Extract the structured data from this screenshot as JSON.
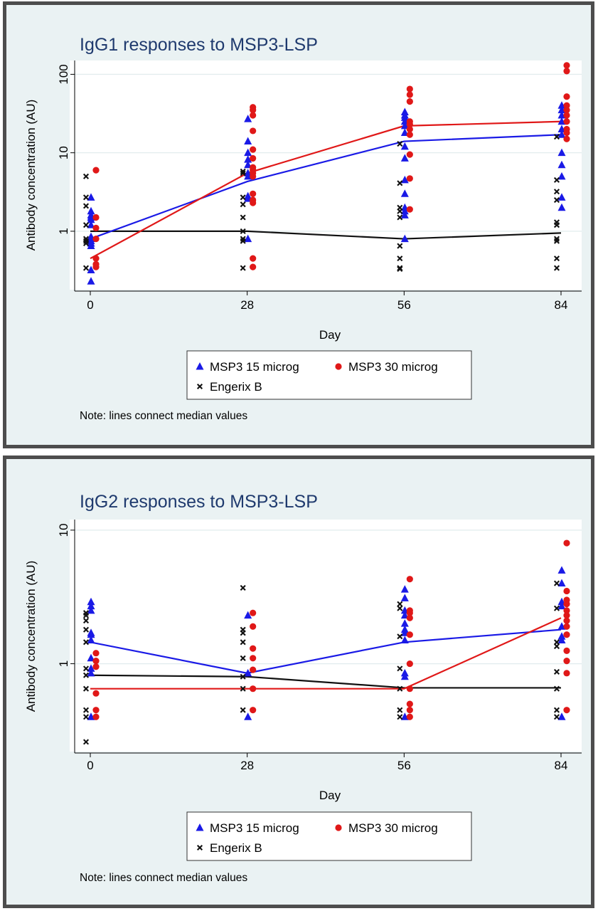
{
  "chart_data": [
    {
      "type": "scatter",
      "title": "IgG1 responses to MSP3-LSP",
      "xlabel": "Day",
      "ylabel": "Antibody concentration (AU)",
      "y_scale": "log",
      "ylim": [
        0.18,
        150
      ],
      "x_ticks": [
        0,
        28,
        56,
        84
      ],
      "y_ticks": [
        1,
        10,
        100
      ],
      "grid": true,
      "legend_position": "bottom",
      "note": "Note: lines connect median values",
      "series": [
        {
          "name": "MSP3 15 microg",
          "marker": "triangle",
          "color": "#1a1ae6",
          "points": [
            [
              0,
              2.7
            ],
            [
              0,
              1.8
            ],
            [
              0,
              1.6
            ],
            [
              0,
              1.5
            ],
            [
              0,
              1.4
            ],
            [
              0,
              1.2
            ],
            [
              0,
              0.85
            ],
            [
              0,
              0.8
            ],
            [
              0,
              0.75
            ],
            [
              0,
              0.7
            ],
            [
              0,
              0.65
            ],
            [
              0,
              0.32
            ],
            [
              0,
              0.23
            ],
            [
              28,
              27
            ],
            [
              28,
              14
            ],
            [
              28,
              10
            ],
            [
              28,
              8.2
            ],
            [
              28,
              7
            ],
            [
              28,
              5.5
            ],
            [
              28,
              5
            ],
            [
              28,
              2.8
            ],
            [
              28,
              2.6
            ],
            [
              28,
              0.8
            ],
            [
              56,
              33
            ],
            [
              56,
              30
            ],
            [
              56,
              28
            ],
            [
              56,
              25
            ],
            [
              56,
              22
            ],
            [
              56,
              18
            ],
            [
              56,
              12
            ],
            [
              56,
              8.5
            ],
            [
              56,
              4.5
            ],
            [
              56,
              3
            ],
            [
              56,
              2
            ],
            [
              56,
              1.8
            ],
            [
              56,
              1.6
            ],
            [
              56,
              0.8
            ],
            [
              84,
              40
            ],
            [
              84,
              35
            ],
            [
              84,
              30
            ],
            [
              84,
              25
            ],
            [
              84,
              20
            ],
            [
              84,
              17
            ],
            [
              84,
              10
            ],
            [
              84,
              7
            ],
            [
              84,
              5
            ],
            [
              84,
              2.7
            ],
            [
              84,
              2
            ]
          ],
          "medians": [
            [
              0,
              0.8
            ],
            [
              28,
              4.3
            ],
            [
              56,
              14
            ],
            [
              84,
              17
            ]
          ]
        },
        {
          "name": "MSP3 30 microg",
          "marker": "circle",
          "color": "#e01818",
          "points": [
            [
              0,
              6
            ],
            [
              0,
              1.5
            ],
            [
              0,
              1.1
            ],
            [
              0,
              0.8
            ],
            [
              0,
              0.45
            ],
            [
              0,
              0.38
            ],
            [
              0,
              0.35
            ],
            [
              28,
              38
            ],
            [
              28,
              35
            ],
            [
              28,
              30
            ],
            [
              28,
              19
            ],
            [
              28,
              11
            ],
            [
              28,
              8.5
            ],
            [
              28,
              6.5
            ],
            [
              28,
              6
            ],
            [
              28,
              5.5
            ],
            [
              28,
              5
            ],
            [
              28,
              3
            ],
            [
              28,
              2.5
            ],
            [
              28,
              2.3
            ],
            [
              28,
              0.45
            ],
            [
              28,
              0.35
            ],
            [
              56,
              65
            ],
            [
              56,
              55
            ],
            [
              56,
              45
            ],
            [
              56,
              25
            ],
            [
              56,
              23
            ],
            [
              56,
              20
            ],
            [
              56,
              17
            ],
            [
              56,
              9.5
            ],
            [
              56,
              4.7
            ],
            [
              56,
              1.9
            ],
            [
              84,
              130
            ],
            [
              84,
              110
            ],
            [
              84,
              52
            ],
            [
              84,
              40
            ],
            [
              84,
              35
            ],
            [
              84,
              30
            ],
            [
              84,
              25
            ],
            [
              84,
              20
            ],
            [
              84,
              18
            ],
            [
              84,
              15
            ]
          ],
          "medians": [
            [
              0,
              0.45
            ],
            [
              28,
              5.5
            ],
            [
              56,
              22
            ],
            [
              84,
              25
            ]
          ]
        },
        {
          "name": "Engerix B",
          "marker": "x",
          "color": "#111111",
          "points": [
            [
              0,
              5
            ],
            [
              0,
              2.7
            ],
            [
              0,
              2.1
            ],
            [
              0,
              1.2
            ],
            [
              0,
              0.8
            ],
            [
              0,
              0.75
            ],
            [
              0,
              0.7
            ],
            [
              0,
              0.34
            ],
            [
              28,
              5.8
            ],
            [
              28,
              5.5
            ],
            [
              28,
              2.7
            ],
            [
              28,
              2.2
            ],
            [
              28,
              1.5
            ],
            [
              28,
              1
            ],
            [
              28,
              0.8
            ],
            [
              28,
              0.75
            ],
            [
              28,
              0.34
            ],
            [
              56,
              13
            ],
            [
              56,
              4.1
            ],
            [
              56,
              2
            ],
            [
              56,
              1.8
            ],
            [
              56,
              1.5
            ],
            [
              56,
              0.65
            ],
            [
              56,
              0.45
            ],
            [
              56,
              0.34
            ],
            [
              56,
              0.33
            ],
            [
              84,
              16
            ],
            [
              84,
              4.5
            ],
            [
              84,
              3.2
            ],
            [
              84,
              2.5
            ],
            [
              84,
              1.3
            ],
            [
              84,
              1.2
            ],
            [
              84,
              0.8
            ],
            [
              84,
              0.75
            ],
            [
              84,
              0.45
            ],
            [
              84,
              0.34
            ]
          ],
          "medians": [
            [
              0,
              1
            ],
            [
              28,
              1
            ],
            [
              56,
              0.8
            ],
            [
              84,
              0.95
            ]
          ]
        }
      ]
    },
    {
      "type": "scatter",
      "title": "IgG2 responses to MSP3-LSP",
      "xlabel": "Day",
      "ylabel": "Antibody concentration (AU)",
      "y_scale": "log",
      "ylim": [
        0.22,
        12
      ],
      "x_ticks": [
        0,
        28,
        56,
        84
      ],
      "y_ticks": [
        1,
        10
      ],
      "grid": true,
      "legend_position": "bottom",
      "note": "Note: lines connect median values",
      "series": [
        {
          "name": "MSP3 15 microg",
          "marker": "triangle",
          "color": "#1a1ae6",
          "points": [
            [
              0,
              2.9
            ],
            [
              0,
              2.7
            ],
            [
              0,
              2.5
            ],
            [
              0,
              1.7
            ],
            [
              0,
              1.65
            ],
            [
              0,
              1.5
            ],
            [
              0,
              1.1
            ],
            [
              0,
              0.92
            ],
            [
              0,
              0.85
            ],
            [
              0,
              0.4
            ],
            [
              28,
              2.3
            ],
            [
              28,
              0.85
            ],
            [
              28,
              0.4
            ],
            [
              56,
              3.6
            ],
            [
              56,
              3.1
            ],
            [
              56,
              2.5
            ],
            [
              56,
              2.3
            ],
            [
              56,
              2
            ],
            [
              56,
              1.8
            ],
            [
              56,
              1.7
            ],
            [
              56,
              1.5
            ],
            [
              56,
              0.85
            ],
            [
              56,
              0.8
            ],
            [
              56,
              0.4
            ],
            [
              84,
              5
            ],
            [
              84,
              4
            ],
            [
              84,
              2.9
            ],
            [
              84,
              2.7
            ],
            [
              84,
              1.9
            ],
            [
              84,
              1.6
            ],
            [
              84,
              1.5
            ],
            [
              84,
              0.4
            ]
          ],
          "medians": [
            [
              0,
              1.45
            ],
            [
              28,
              0.85
            ],
            [
              56,
              1.45
            ],
            [
              84,
              1.8
            ]
          ]
        },
        {
          "name": "MSP3 30 microg",
          "marker": "circle",
          "color": "#e01818",
          "points": [
            [
              0,
              1.2
            ],
            [
              0,
              1.05
            ],
            [
              0,
              0.95
            ],
            [
              0,
              0.6
            ],
            [
              0,
              0.45
            ],
            [
              0,
              0.4
            ],
            [
              28,
              2.4
            ],
            [
              28,
              1.9
            ],
            [
              28,
              1.3
            ],
            [
              28,
              1.1
            ],
            [
              28,
              0.9
            ],
            [
              28,
              0.65
            ],
            [
              28,
              0.45
            ],
            [
              56,
              4.3
            ],
            [
              56,
              2.5
            ],
            [
              56,
              2.4
            ],
            [
              56,
              2.2
            ],
            [
              56,
              1.65
            ],
            [
              56,
              1
            ],
            [
              56,
              0.65
            ],
            [
              56,
              0.5
            ],
            [
              56,
              0.45
            ],
            [
              56,
              0.4
            ],
            [
              84,
              8
            ],
            [
              84,
              3.5
            ],
            [
              84,
              3
            ],
            [
              84,
              2.8
            ],
            [
              84,
              2.5
            ],
            [
              84,
              2.3
            ],
            [
              84,
              2.1
            ],
            [
              84,
              1.9
            ],
            [
              84,
              1.65
            ],
            [
              84,
              1.25
            ],
            [
              84,
              1.05
            ],
            [
              84,
              0.85
            ],
            [
              84,
              0.45
            ]
          ],
          "medians": [
            [
              0,
              0.65
            ],
            [
              28,
              0.65
            ],
            [
              56,
              0.65
            ],
            [
              84,
              2.2
            ]
          ]
        },
        {
          "name": "Engerix B",
          "marker": "x",
          "color": "#111111",
          "points": [
            [
              0,
              2.4
            ],
            [
              0,
              2.3
            ],
            [
              0,
              2.1
            ],
            [
              0,
              1.8
            ],
            [
              0,
              1.45
            ],
            [
              0,
              0.92
            ],
            [
              0,
              0.82
            ],
            [
              0,
              0.65
            ],
            [
              0,
              0.45
            ],
            [
              0,
              0.4
            ],
            [
              0,
              0.26
            ],
            [
              28,
              3.7
            ],
            [
              28,
              1.8
            ],
            [
              28,
              1.7
            ],
            [
              28,
              1.45
            ],
            [
              28,
              1.1
            ],
            [
              28,
              0.8
            ],
            [
              28,
              0.65
            ],
            [
              28,
              0.45
            ],
            [
              56,
              2.8
            ],
            [
              56,
              2.6
            ],
            [
              56,
              1.6
            ],
            [
              56,
              0.92
            ],
            [
              56,
              0.65
            ],
            [
              56,
              0.45
            ],
            [
              56,
              0.4
            ],
            [
              84,
              4
            ],
            [
              84,
              2.6
            ],
            [
              84,
              1.45
            ],
            [
              84,
              1.35
            ],
            [
              84,
              0.87
            ],
            [
              84,
              0.65
            ],
            [
              84,
              0.45
            ],
            [
              84,
              0.4
            ]
          ],
          "medians": [
            [
              0,
              0.82
            ],
            [
              28,
              0.8
            ],
            [
              56,
              0.66
            ],
            [
              84,
              0.66
            ]
          ]
        }
      ]
    }
  ]
}
